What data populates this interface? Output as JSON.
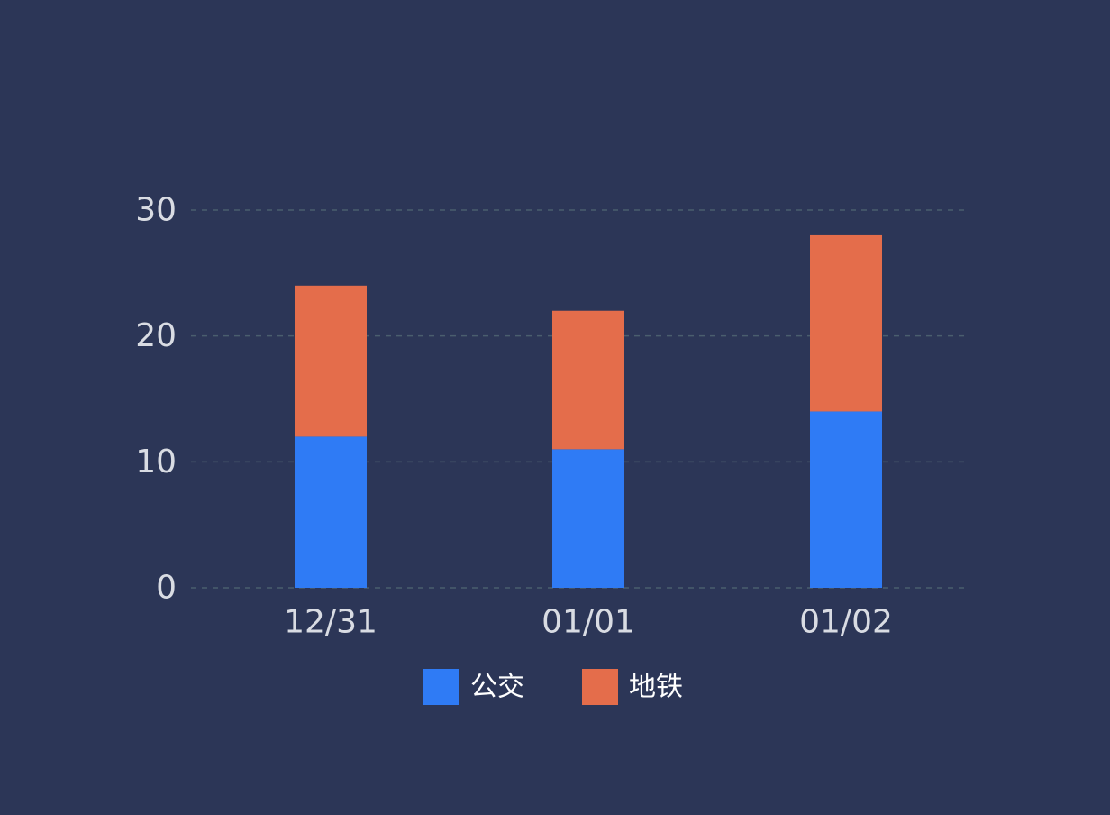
{
  "chart_data": {
    "type": "bar",
    "stacked": true,
    "categories": [
      "12/31",
      "01/01",
      "01/02"
    ],
    "series": [
      {
        "name": "公交",
        "values": [
          12,
          11,
          14
        ],
        "color": "#2f7bf5"
      },
      {
        "name": "地铁",
        "values": [
          12,
          11,
          14
        ],
        "color": "#e46d4b"
      }
    ],
    "ylim": [
      0,
      30
    ],
    "yticks": [
      0,
      10,
      20,
      30
    ],
    "grid": true,
    "legend": "bottom-center",
    "background_color": "#2c3657",
    "grid_color": "#4a5e6e",
    "label_color": "#d9dce3"
  }
}
